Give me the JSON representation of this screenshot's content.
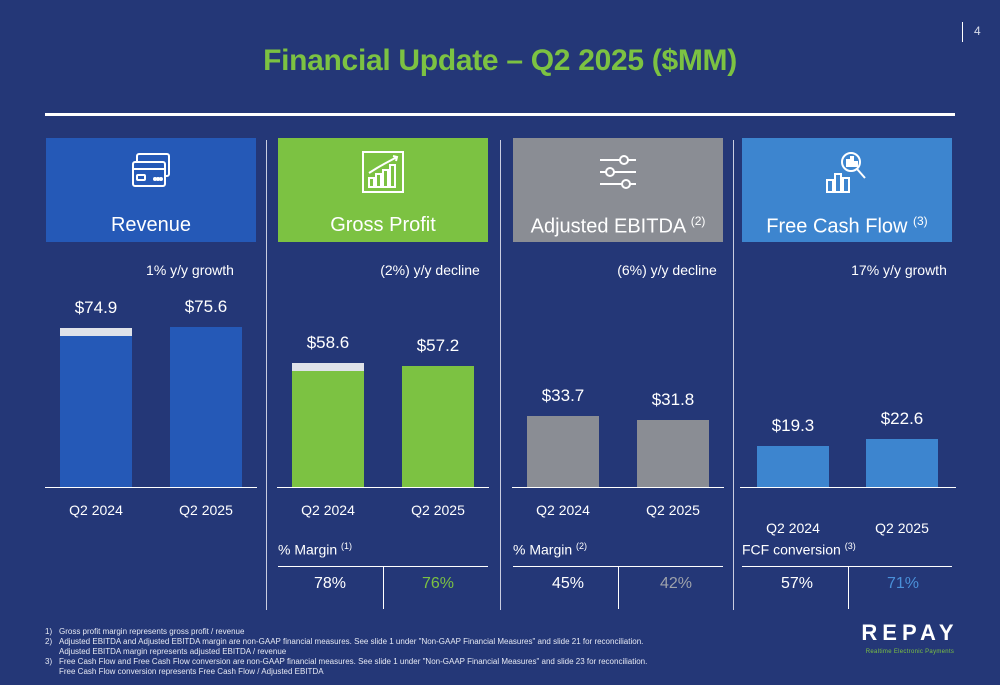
{
  "page_number": "4",
  "title": "Financial Update – Q2 2025 ($MM)",
  "colors": {
    "background": "#243777",
    "revenue": "#2559b7",
    "gross_profit": "#7cc242",
    "ebitda": "#8a8d94",
    "fcf": "#3d85cf",
    "prior_period_cap": "#dfe2e9",
    "title_green": "#7cc242"
  },
  "panels": [
    {
      "label": "Revenue",
      "sup": "",
      "icon": "credit-cards-icon",
      "growth": "1% y/y growth"
    },
    {
      "label": "Gross Profit",
      "sup": "",
      "icon": "bar-chart-growth-icon",
      "growth": "(2%) y/y decline"
    },
    {
      "label": "Adjusted EBITDA",
      "sup": "(2)",
      "icon": "sliders-icon",
      "growth": "(6%) y/y decline"
    },
    {
      "label": "Free Cash Flow",
      "sup": "(3)",
      "icon": "magnifier-chart-icon",
      "growth": "17% y/y growth"
    }
  ],
  "chart_data": [
    {
      "type": "bar",
      "title": "Revenue",
      "categories": [
        "Q2 2024",
        "Q2 2025"
      ],
      "values": [
        74.9,
        75.6
      ],
      "value_labels": [
        "$74.9",
        "$75.6"
      ],
      "annotation": "1% y/y growth"
    },
    {
      "type": "bar",
      "title": "Gross Profit",
      "categories": [
        "Q2 2024",
        "Q2 2025"
      ],
      "values": [
        58.6,
        57.2
      ],
      "value_labels": [
        "$58.6",
        "$57.2"
      ],
      "annotation": "(2%) y/y decline"
    },
    {
      "type": "bar",
      "title": "Adjusted EBITDA (2)",
      "categories": [
        "Q2 2024",
        "Q2 2025"
      ],
      "values": [
        33.7,
        31.8
      ],
      "value_labels": [
        "$33.7",
        "$31.8"
      ],
      "annotation": "(6%) y/y decline"
    },
    {
      "type": "bar",
      "title": "Free Cash Flow (3)",
      "categories": [
        "Q2 2024",
        "Q2 2025"
      ],
      "values": [
        19.3,
        22.6
      ],
      "value_labels": [
        "$19.3",
        "$22.6"
      ],
      "annotation": "17% y/y growth"
    }
  ],
  "margins": [
    {
      "label": "% Margin",
      "sup": "(1)",
      "values": [
        "78%",
        "76%"
      ]
    },
    {
      "label": "% Margin",
      "sup": "(2)",
      "values": [
        "45%",
        "42%"
      ]
    },
    {
      "label": "FCF conversion",
      "sup": "(3)",
      "values": [
        "57%",
        "71%"
      ]
    }
  ],
  "footnotes": [
    {
      "num": "1)",
      "lines": [
        "Gross profit margin represents gross profit / revenue"
      ]
    },
    {
      "num": "2)",
      "lines": [
        "Adjusted EBITDA and Adjusted EBITDA margin are non-GAAP financial measures. See slide 1 under \"Non-GAAP Financial Measures\" and slide 21 for reconciliation.",
        "Adjusted EBITDA margin represents adjusted EBITDA / revenue"
      ]
    },
    {
      "num": "3)",
      "lines": [
        "Free Cash Flow and Free Cash Flow conversion are non-GAAP financial measures. See slide 1 under \"Non-GAAP Financial Measures\" and slide 23 for reconciliation.",
        "Free Cash Flow conversion represents Free Cash Flow / Adjusted EBITDA"
      ]
    }
  ],
  "logo": {
    "word": "REPAY",
    "tagline": "Realtime Electronic Payments"
  }
}
